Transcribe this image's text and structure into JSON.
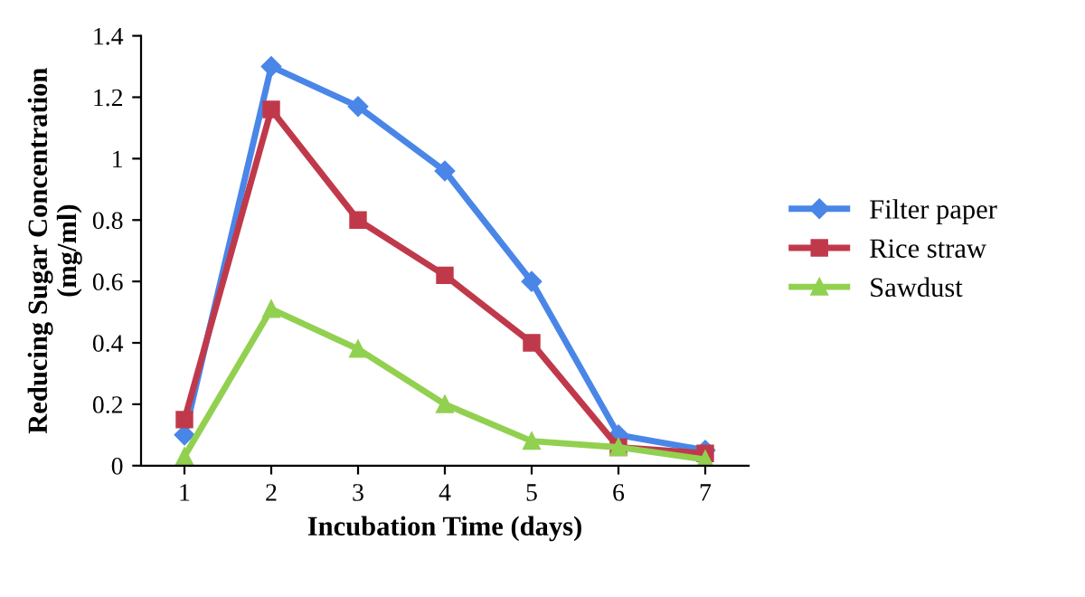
{
  "chart_data": {
    "type": "line",
    "xlabel": "Incubation Time (days)",
    "ylabel": "Reducing Sugar Concentration\n(mg/ml)",
    "categories": [
      "1",
      "2",
      "3",
      "4",
      "5",
      "6",
      "7"
    ],
    "series": [
      {
        "name": "Filter paper",
        "color": "#4a86e8",
        "marker": "diamond",
        "values": [
          0.1,
          1.3,
          1.17,
          0.96,
          0.6,
          0.1,
          0.05
        ]
      },
      {
        "name": "Rice straw",
        "color": "#c0394b",
        "marker": "square",
        "values": [
          0.15,
          1.16,
          0.8,
          0.62,
          0.4,
          0.06,
          0.04
        ]
      },
      {
        "name": "Sawdust",
        "color": "#92d050",
        "marker": "triangle",
        "values": [
          0.03,
          0.51,
          0.38,
          0.2,
          0.08,
          0.06,
          0.02
        ]
      }
    ],
    "ylim": [
      0,
      1.4
    ],
    "yticks": [
      0,
      0.2,
      0.4,
      0.6,
      0.8,
      1,
      1.2,
      1.4
    ],
    "grid": false,
    "legend": "right"
  }
}
